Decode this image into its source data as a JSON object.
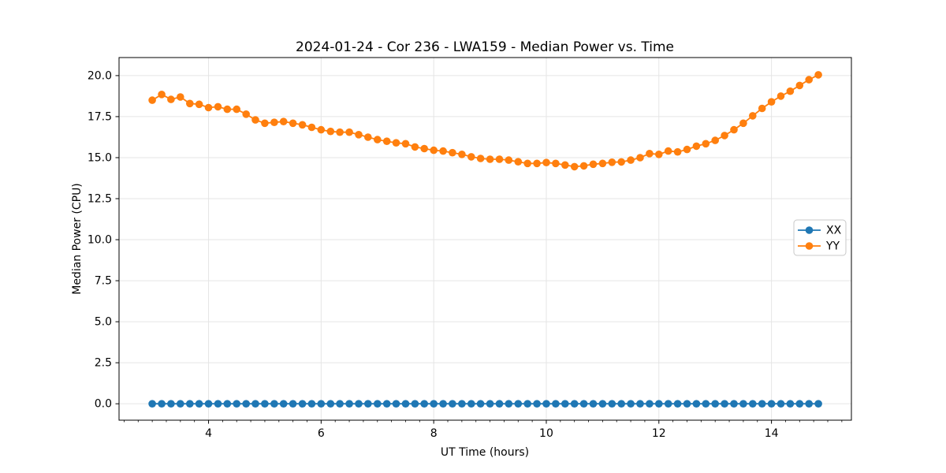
{
  "window": {
    "background": "#ffffff"
  },
  "chart_data": {
    "type": "line",
    "title": "2024-01-24 - Cor 236 - LWA159 - Median Power vs. Time",
    "xlabel": "UT Time (hours)",
    "ylabel": "Median Power (CPU)",
    "xlim": [
      2.41,
      15.42
    ],
    "ylim": [
      -1.0,
      21.1
    ],
    "grid": {
      "show": true,
      "color": "#e5e5e5"
    },
    "xticks": {
      "values": [
        4,
        6,
        8,
        10,
        12,
        14
      ],
      "labels": [
        "4",
        "6",
        "8",
        "10",
        "12",
        "14"
      ]
    },
    "xminor": {
      "start": 2.5,
      "end": 15.25,
      "step": 0.25
    },
    "yticks": {
      "values": [
        0,
        2.5,
        5,
        7.5,
        10,
        12.5,
        15,
        17.5,
        20
      ],
      "labels": [
        "0.0",
        "2.5",
        "5.0",
        "7.5",
        "10.0",
        "12.5",
        "15.0",
        "17.5",
        "20.0"
      ]
    },
    "legend": {
      "position": "center right",
      "entries": [
        "XX",
        "YY"
      ]
    },
    "x": [
      3.0,
      3.167,
      3.333,
      3.5,
      3.667,
      3.833,
      4.0,
      4.167,
      4.333,
      4.5,
      4.667,
      4.833,
      5.0,
      5.167,
      5.333,
      5.5,
      5.667,
      5.833,
      6.0,
      6.167,
      6.333,
      6.5,
      6.667,
      6.833,
      7.0,
      7.167,
      7.333,
      7.5,
      7.667,
      7.833,
      8.0,
      8.167,
      8.333,
      8.5,
      8.667,
      8.833,
      9.0,
      9.167,
      9.333,
      9.5,
      9.667,
      9.833,
      10.0,
      10.167,
      10.333,
      10.5,
      10.667,
      10.833,
      11.0,
      11.167,
      11.333,
      11.5,
      11.667,
      11.833,
      12.0,
      12.167,
      12.333,
      12.5,
      12.667,
      12.833,
      13.0,
      13.167,
      13.333,
      13.5,
      13.667,
      13.833,
      14.0,
      14.167,
      14.333,
      14.5,
      14.667,
      14.833
    ],
    "series": [
      {
        "name": "XX",
        "color": "#1f77b4",
        "marker": "circle",
        "values": [
          0.0,
          0.0,
          0.0,
          0.0,
          0.0,
          0.0,
          0.0,
          0.0,
          0.0,
          0.0,
          0.0,
          0.0,
          0.0,
          0.0,
          0.0,
          0.0,
          0.0,
          0.0,
          0.0,
          0.0,
          0.0,
          0.0,
          0.0,
          0.0,
          0.0,
          0.0,
          0.0,
          0.0,
          0.0,
          0.0,
          0.0,
          0.0,
          0.0,
          0.0,
          0.0,
          0.0,
          0.0,
          0.0,
          0.0,
          0.0,
          0.0,
          0.0,
          0.0,
          0.0,
          0.0,
          0.0,
          0.0,
          0.0,
          0.0,
          0.0,
          0.0,
          0.0,
          0.0,
          0.0,
          0.0,
          0.0,
          0.0,
          0.0,
          0.0,
          0.0,
          0.0,
          0.0,
          0.0,
          0.0,
          0.0,
          0.0,
          0.0,
          0.0,
          0.0,
          0.0,
          0.0,
          0.0
        ]
      },
      {
        "name": "YY",
        "color": "#ff7f0e",
        "marker": "circle",
        "values": [
          18.5,
          18.85,
          18.55,
          18.7,
          18.3,
          18.25,
          18.05,
          18.1,
          17.95,
          17.95,
          17.65,
          17.3,
          17.1,
          17.15,
          17.2,
          17.1,
          17.0,
          16.85,
          16.7,
          16.6,
          16.55,
          16.55,
          16.4,
          16.25,
          16.1,
          16.0,
          15.9,
          15.85,
          15.65,
          15.55,
          15.45,
          15.4,
          15.3,
          15.2,
          15.05,
          14.95,
          14.9,
          14.9,
          14.85,
          14.75,
          14.65,
          14.65,
          14.7,
          14.65,
          14.55,
          14.45,
          14.5,
          14.6,
          14.65,
          14.72,
          14.74,
          14.85,
          15.0,
          15.25,
          15.2,
          15.4,
          15.35,
          15.5,
          15.7,
          15.85,
          16.05,
          16.35,
          16.7,
          17.1,
          17.55,
          18.0,
          18.4,
          18.75,
          19.05,
          19.4,
          19.75,
          20.05
        ]
      }
    ]
  }
}
